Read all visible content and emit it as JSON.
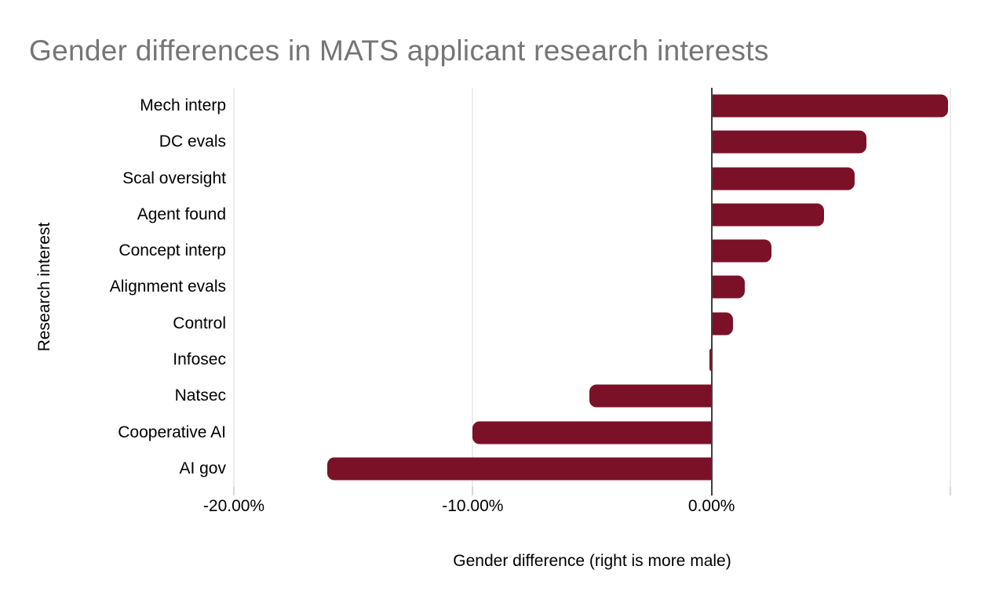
{
  "title": {
    "text": "Gender differences in MATS applicant research interests",
    "color": "#757575"
  },
  "chart_data": {
    "type": "bar",
    "orientation": "horizontal",
    "title": "Gender differences in MATS applicant research interests",
    "xlabel": "Gender difference (right is more male)",
    "ylabel": "Research interest",
    "categories": [
      "Mech interp",
      "DC evals",
      "Scal oversight",
      "Agent found",
      "Concept interp",
      "Alignment evals",
      "Control",
      "Infosec",
      "Natsec",
      "Cooperative AI",
      "AI gov"
    ],
    "values": [
      9.9,
      6.5,
      6.0,
      4.7,
      2.5,
      1.4,
      0.9,
      -0.1,
      -5.1,
      -10.0,
      -16.1
    ],
    "value_unit": "percent",
    "xlim": [
      -20,
      10
    ],
    "xticks": [
      {
        "value": -20,
        "label": "-20.00%"
      },
      {
        "value": -10,
        "label": "-10.00%"
      },
      {
        "value": 0,
        "label": "0.00%"
      },
      {
        "value": 10,
        "label": ""
      }
    ],
    "grid": "vertical",
    "legend": "none",
    "bar_color": "#7b1127",
    "gridline_color": "#d9d9d9",
    "zero_axis_color": "#3f3f3f",
    "tick_color": "#b0b0b0"
  }
}
